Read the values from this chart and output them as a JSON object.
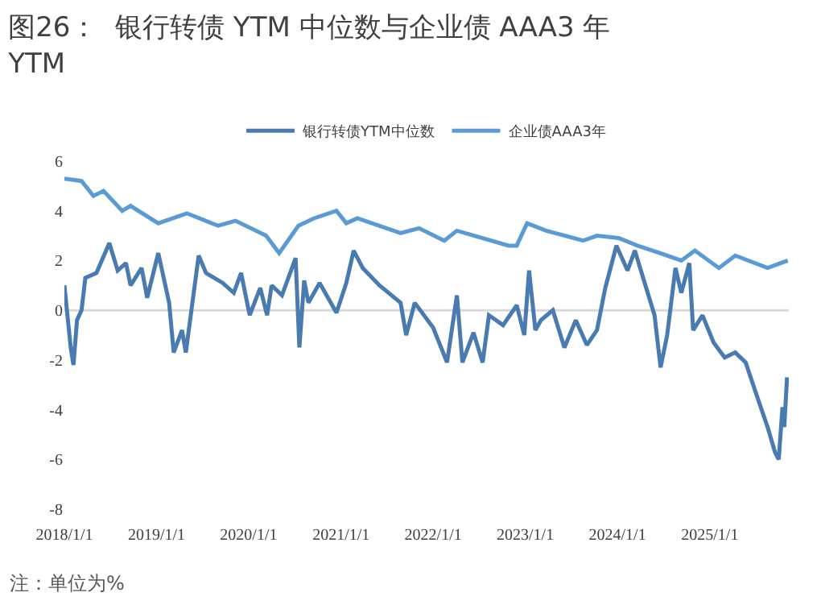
{
  "chart_data": {
    "type": "line",
    "title": "图26：  银行转债 YTM 中位数与企业债 AAA3 年 YTM",
    "annotations": [
      "注：单位为%"
    ],
    "xlim": [
      "2018-01-01",
      "2025-11-10"
    ],
    "xticks": [
      {
        "value": "2018-01-01",
        "label": "2018/1/1"
      },
      {
        "value": "2019-01-01",
        "label": "2019/1/1"
      },
      {
        "value": "2020-01-01",
        "label": "2020/1/1"
      },
      {
        "value": "2021-01-01",
        "label": "2021/1/1"
      },
      {
        "value": "2022-01-01",
        "label": "2022/1/1"
      },
      {
        "value": "2023-01-01",
        "label": "2023/1/1"
      },
      {
        "value": "2024-01-01",
        "label": "2024/1/1"
      },
      {
        "value": "2025-01-01",
        "label": "2025/1/1"
      }
    ],
    "ylim": [
      -8,
      6
    ],
    "yticks": [
      -8,
      -6,
      -4,
      -2,
      0,
      2,
      4,
      6
    ],
    "grid": false,
    "ref_lines": [
      {
        "axis": "y",
        "value": 0,
        "color": "#d9d9d9"
      }
    ],
    "legend": "top",
    "marker": "none",
    "line_style": "solid",
    "series": [
      {
        "name": "银行转债YTM中位数",
        "color": "#4a7bb0",
        "x": [
          "2018-01-01",
          "2018-01-08",
          "2018-01-26",
          "2018-02-06",
          "2018-02-20",
          "2018-03-10",
          "2018-03-25",
          "2018-05-08",
          "2018-06-28",
          "2018-07-31",
          "2018-09-02",
          "2018-09-20",
          "2018-11-03",
          "2018-11-25",
          "2019-01-08",
          "2019-02-20",
          "2019-03-10",
          "2019-04-12",
          "2019-04-27",
          "2019-06-17",
          "2019-07-16",
          "2019-09-20",
          "2019-11-03",
          "2019-12-02",
          "2020-01-05",
          "2020-02-16",
          "2020-03-14",
          "2020-04-01",
          "2020-05-12",
          "2020-07-05",
          "2020-07-20",
          "2020-08-08",
          "2020-08-25",
          "2020-10-08",
          "2020-12-14",
          "2021-01-22",
          "2021-02-20",
          "2021-03-28",
          "2021-06-02",
          "2021-08-25",
          "2021-09-16",
          "2021-10-20",
          "2022-01-01",
          "2022-02-25",
          "2022-04-05",
          "2022-04-27",
          "2022-06-10",
          "2022-07-16",
          "2022-08-10",
          "2022-10-05",
          "2022-11-28",
          "2022-12-28",
          "2023-01-16",
          "2023-02-10",
          "2023-03-04",
          "2023-04-20",
          "2023-06-05",
          "2023-07-20",
          "2023-09-02",
          "2023-10-12",
          "2023-11-14",
          "2023-12-28",
          "2024-02-10",
          "2024-03-10",
          "2024-04-12",
          "2024-05-27",
          "2024-06-20",
          "2024-07-16",
          "2024-08-18",
          "2024-09-10",
          "2024-10-12",
          "2024-10-27",
          "2024-12-03",
          "2025-01-16",
          "2025-03-01",
          "2025-04-12",
          "2025-05-23",
          "2025-07-05",
          "2025-08-18",
          "2025-09-16",
          "2025-10-01",
          "2025-10-16",
          "2025-10-23",
          "2025-11-03"
        ],
        "values": [
          1.0,
          0.3,
          -1.5,
          -2.2,
          -0.4,
          0.0,
          1.3,
          1.5,
          2.7,
          1.6,
          1.9,
          1.0,
          1.7,
          0.5,
          2.3,
          0.3,
          -1.7,
          -0.8,
          -1.7,
          2.2,
          1.5,
          1.1,
          0.7,
          1.5,
          -0.2,
          0.9,
          -0.2,
          1.0,
          0.6,
          2.1,
          -1.5,
          1.2,
          0.3,
          1.1,
          -0.1,
          1.1,
          2.4,
          1.7,
          1.0,
          0.3,
          -1.0,
          0.3,
          -0.7,
          -2.1,
          0.6,
          -2.1,
          -0.9,
          -2.1,
          -0.2,
          -0.6,
          0.2,
          -1.0,
          1.6,
          -0.8,
          -0.4,
          0.0,
          -1.5,
          -0.4,
          -1.4,
          -0.8,
          0.9,
          2.6,
          1.6,
          2.4,
          1.3,
          -0.2,
          -2.3,
          -1.0,
          1.7,
          0.7,
          1.9,
          -0.8,
          -0.2,
          -1.3,
          -1.9,
          -1.7,
          -2.1,
          -3.4,
          -4.7,
          -5.7,
          -6.0,
          -3.9,
          -4.7,
          -2.7
        ]
      },
      {
        "name": "企业债AAA3年",
        "color": "#5b9bd5",
        "x": [
          "2018-01-01",
          "2018-03-10",
          "2018-04-26",
          "2018-06-05",
          "2018-08-18",
          "2018-09-20",
          "2019-01-08",
          "2019-05-01",
          "2019-09-02",
          "2019-11-10",
          "2020-03-10",
          "2020-05-01",
          "2020-07-16",
          "2020-09-16",
          "2020-12-14",
          "2021-01-22",
          "2021-03-07",
          "2021-08-25",
          "2021-11-06",
          "2022-02-14",
          "2022-04-05",
          "2022-10-27",
          "2022-11-28",
          "2023-01-08",
          "2023-03-25",
          "2023-08-18",
          "2023-10-12",
          "2024-01-08",
          "2024-03-20",
          "2024-06-17",
          "2024-09-10",
          "2024-11-03",
          "2025-02-06",
          "2025-04-12",
          "2025-08-18",
          "2025-11-06"
        ],
        "values": [
          5.3,
          5.2,
          4.6,
          4.8,
          4.0,
          4.2,
          3.5,
          3.9,
          3.4,
          3.6,
          3.0,
          2.3,
          3.4,
          3.7,
          4.0,
          3.5,
          3.7,
          3.1,
          3.3,
          2.8,
          3.2,
          2.6,
          2.6,
          3.5,
          3.2,
          2.8,
          3.0,
          2.9,
          2.6,
          2.3,
          2.0,
          2.4,
          1.7,
          2.2,
          1.7,
          2.0
        ]
      }
    ]
  }
}
